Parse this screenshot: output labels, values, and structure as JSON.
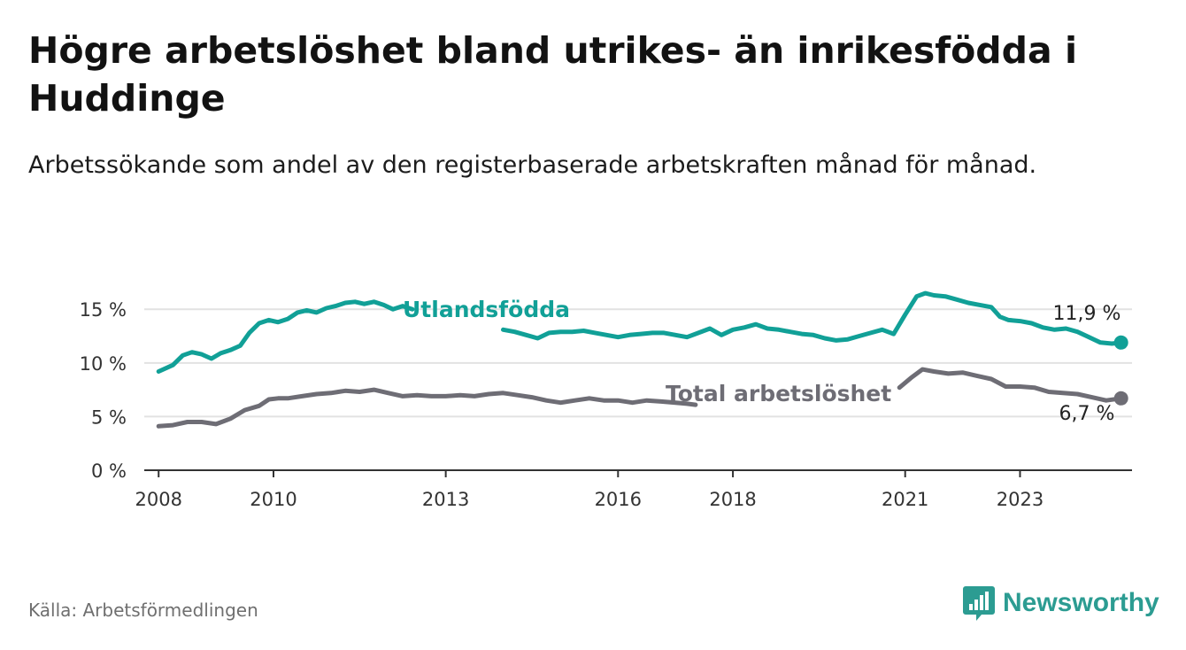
{
  "title": "Högre arbetslöshet bland utrikes- än inrikesfödda i Huddinge",
  "subtitle": "Arbetssökande som andel av den registerbaserade arbetskraften månad för månad.",
  "source": "Källa: Arbetsförmedlingen",
  "brand": "Newsworthy",
  "colors": {
    "foreign": "#11a097",
    "total": "#6e6d75",
    "axis": "#333333",
    "grid": "#e2e2e2",
    "brand": "#2c9c92"
  },
  "chart_data": {
    "type": "line",
    "title": "Högre arbetslöshet bland utrikes- än inrikesfödda i Huddinge",
    "xlabel": "",
    "ylabel": "",
    "ylim": [
      0,
      17
    ],
    "xlim": [
      2007.75,
      2024.95
    ],
    "y_ticks": [
      0,
      5,
      10,
      15
    ],
    "y_tick_labels": [
      "0 %",
      "5 %",
      "10 %",
      "15 %"
    ],
    "x_ticks": [
      2008,
      2010,
      2013,
      2016,
      2018,
      2021,
      2023
    ],
    "x_tick_labels": [
      "2008",
      "2010",
      "2013",
      "2016",
      "2018",
      "2021",
      "2023"
    ],
    "grid": true,
    "series": [
      {
        "name": "Utlandsfödda",
        "label": "Utlandsfödda",
        "end_label": "11,9 %",
        "points": [
          [
            2008.0,
            9.2
          ],
          [
            2008.25,
            9.8
          ],
          [
            2008.42,
            10.7
          ],
          [
            2008.58,
            11.0
          ],
          [
            2008.75,
            10.8
          ],
          [
            2008.92,
            10.4
          ],
          [
            2009.08,
            10.9
          ],
          [
            2009.25,
            11.2
          ],
          [
            2009.42,
            11.6
          ],
          [
            2009.58,
            12.8
          ],
          [
            2009.75,
            13.7
          ],
          [
            2009.92,
            14.0
          ],
          [
            2010.08,
            13.8
          ],
          [
            2010.25,
            14.1
          ],
          [
            2010.42,
            14.7
          ],
          [
            2010.58,
            14.9
          ],
          [
            2010.75,
            14.7
          ],
          [
            2010.92,
            15.1
          ],
          [
            2011.08,
            15.3
          ],
          [
            2011.25,
            15.6
          ],
          [
            2011.42,
            15.7
          ],
          [
            2011.58,
            15.5
          ],
          [
            2011.75,
            15.7
          ],
          [
            2011.92,
            15.4
          ],
          [
            2012.08,
            15.0
          ],
          [
            2012.25,
            15.3
          ],
          [
            2012.42,
            15.0
          ],
          null,
          [
            2014.0,
            13.1
          ],
          [
            2014.2,
            12.9
          ],
          [
            2014.4,
            12.6
          ],
          [
            2014.6,
            12.3
          ],
          [
            2014.8,
            12.8
          ],
          [
            2015.0,
            12.9
          ],
          [
            2015.2,
            12.9
          ],
          [
            2015.4,
            13.0
          ],
          [
            2015.6,
            12.8
          ],
          [
            2015.8,
            12.6
          ],
          [
            2016.0,
            12.4
          ],
          [
            2016.2,
            12.6
          ],
          [
            2016.4,
            12.7
          ],
          [
            2016.6,
            12.8
          ],
          [
            2016.8,
            12.8
          ],
          [
            2017.0,
            12.6
          ],
          [
            2017.2,
            12.4
          ],
          [
            2017.4,
            12.8
          ],
          [
            2017.6,
            13.2
          ],
          [
            2017.8,
            12.6
          ],
          [
            2018.0,
            13.1
          ],
          [
            2018.2,
            13.3
          ],
          [
            2018.4,
            13.6
          ],
          [
            2018.6,
            13.2
          ],
          [
            2018.8,
            13.1
          ],
          [
            2019.0,
            12.9
          ],
          [
            2019.2,
            12.7
          ],
          [
            2019.4,
            12.6
          ],
          [
            2019.6,
            12.3
          ],
          [
            2019.8,
            12.1
          ],
          [
            2020.0,
            12.2
          ],
          [
            2020.2,
            12.5
          ],
          [
            2020.4,
            12.8
          ],
          [
            2020.6,
            13.1
          ],
          [
            2020.8,
            12.7
          ],
          [
            2021.0,
            14.5
          ],
          [
            2021.2,
            16.2
          ],
          [
            2021.35,
            16.5
          ],
          [
            2021.5,
            16.3
          ],
          [
            2021.7,
            16.2
          ],
          [
            2021.9,
            15.9
          ],
          [
            2022.1,
            15.6
          ],
          [
            2022.3,
            15.4
          ],
          [
            2022.5,
            15.2
          ],
          [
            2022.65,
            14.3
          ],
          [
            2022.8,
            14.0
          ],
          [
            2023.0,
            13.9
          ],
          [
            2023.2,
            13.7
          ],
          [
            2023.4,
            13.3
          ],
          [
            2023.6,
            13.1
          ],
          [
            2023.8,
            13.2
          ],
          [
            2024.0,
            12.9
          ],
          [
            2024.2,
            12.4
          ],
          [
            2024.4,
            11.9
          ],
          [
            2024.6,
            11.8
          ],
          [
            2024.76,
            11.9
          ]
        ]
      },
      {
        "name": "Total arbetslöshet",
        "label": "Total arbetslöshet",
        "end_label": "6,7 %",
        "points": [
          [
            2008.0,
            4.1
          ],
          [
            2008.25,
            4.2
          ],
          [
            2008.5,
            4.5
          ],
          [
            2008.75,
            4.5
          ],
          [
            2009.0,
            4.3
          ],
          [
            2009.25,
            4.8
          ],
          [
            2009.5,
            5.6
          ],
          [
            2009.75,
            6.0
          ],
          [
            2009.92,
            6.6
          ],
          [
            2010.08,
            6.7
          ],
          [
            2010.25,
            6.7
          ],
          [
            2010.5,
            6.9
          ],
          [
            2010.75,
            7.1
          ],
          [
            2011.0,
            7.2
          ],
          [
            2011.25,
            7.4
          ],
          [
            2011.5,
            7.3
          ],
          [
            2011.75,
            7.5
          ],
          [
            2012.0,
            7.2
          ],
          [
            2012.25,
            6.9
          ],
          [
            2012.5,
            7.0
          ],
          [
            2012.75,
            6.9
          ],
          [
            2013.0,
            6.9
          ],
          [
            2013.25,
            7.0
          ],
          [
            2013.5,
            6.9
          ],
          [
            2013.75,
            7.1
          ],
          [
            2014.0,
            7.2
          ],
          [
            2014.25,
            7.0
          ],
          [
            2014.5,
            6.8
          ],
          [
            2014.75,
            6.5
          ],
          [
            2015.0,
            6.3
          ],
          [
            2015.25,
            6.5
          ],
          [
            2015.5,
            6.7
          ],
          [
            2015.75,
            6.5
          ],
          [
            2016.0,
            6.5
          ],
          [
            2016.25,
            6.3
          ],
          [
            2016.5,
            6.5
          ],
          [
            2016.75,
            6.4
          ],
          [
            2017.0,
            6.3
          ],
          [
            2017.2,
            6.2
          ],
          [
            2017.35,
            6.1
          ],
          null,
          [
            2020.9,
            7.7
          ],
          [
            2021.1,
            8.6
          ],
          [
            2021.3,
            9.4
          ],
          [
            2021.5,
            9.2
          ],
          [
            2021.75,
            9.0
          ],
          [
            2022.0,
            9.1
          ],
          [
            2022.25,
            8.8
          ],
          [
            2022.5,
            8.5
          ],
          [
            2022.75,
            7.8
          ],
          [
            2023.0,
            7.8
          ],
          [
            2023.25,
            7.7
          ],
          [
            2023.5,
            7.3
          ],
          [
            2023.75,
            7.2
          ],
          [
            2024.0,
            7.1
          ],
          [
            2024.25,
            6.8
          ],
          [
            2024.5,
            6.5
          ],
          [
            2024.76,
            6.7
          ]
        ]
      }
    ]
  }
}
